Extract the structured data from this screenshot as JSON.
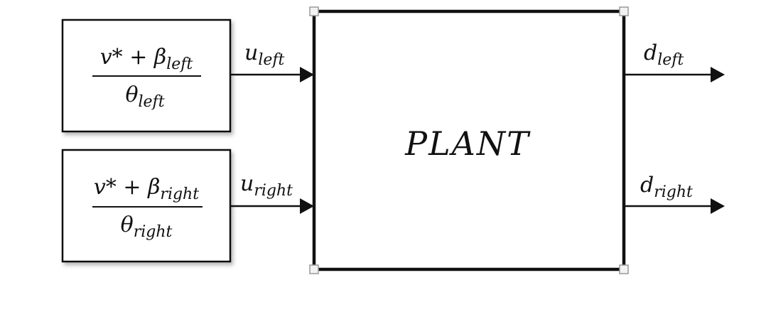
{
  "colors": {
    "line": "#111111",
    "background": "#ffffff",
    "handle": "#9a9a9a"
  },
  "blocks": {
    "left": {
      "numerator_main": "v* + β",
      "numerator_sub": "left",
      "denominator_main": "θ",
      "denominator_sub": "left"
    },
    "right": {
      "numerator_main": "v* + β",
      "numerator_sub": "right",
      "denominator_main": "θ",
      "denominator_sub": "right"
    },
    "plant": {
      "label": "PLANT"
    }
  },
  "signals": {
    "u_left": {
      "main": "u",
      "sub": "left"
    },
    "u_right": {
      "main": "u",
      "sub": "right"
    },
    "d_left": {
      "main": "d",
      "sub": "left"
    },
    "d_right": {
      "main": "d",
      "sub": "right"
    }
  }
}
